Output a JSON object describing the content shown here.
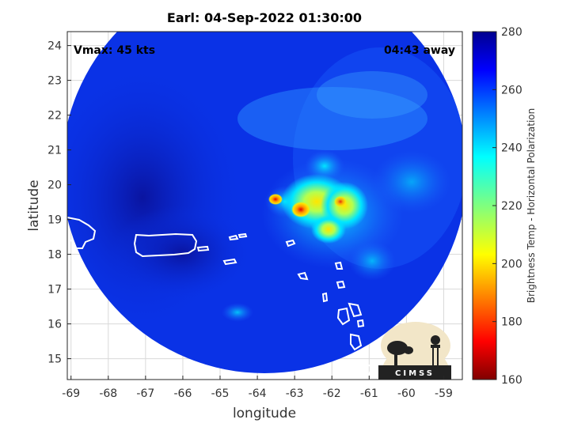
{
  "title": "Earl: 04-Sep-2022 01:30:00",
  "vmax": "Vmax: 45 kts",
  "time_away": "04:43 away",
  "xlabel": "longitude",
  "ylabel": "latitude",
  "colorbar": {
    "label": "Brightness Temp - Horizontal Polarization",
    "range": [
      160,
      280
    ],
    "ticks": [
      "160",
      "180",
      "200",
      "220",
      "240",
      "260",
      "280"
    ],
    "colormap": "jet"
  },
  "axes": {
    "xlim": [
      -69.1,
      -58.5
    ],
    "ylim": [
      14.4,
      24.4
    ],
    "xticks": [
      "-69",
      "-68",
      "-67",
      "-66",
      "-65",
      "-64",
      "-63",
      "-62",
      "-61",
      "-60",
      "-59"
    ],
    "yticks": [
      "15",
      "16",
      "17",
      "18",
      "19",
      "20",
      "21",
      "22",
      "23",
      "24"
    ],
    "grid": true
  },
  "logo": {
    "text": "CIMSS"
  },
  "colors": {
    "background_blue": "#0a32e6",
    "dark_blue": "#0a0fa0",
    "swath_mid": "#1e64ff",
    "cyan": "#00e6ff",
    "yellow": "#ffe600",
    "orange": "#ff8c00",
    "red": "#e60000"
  }
}
